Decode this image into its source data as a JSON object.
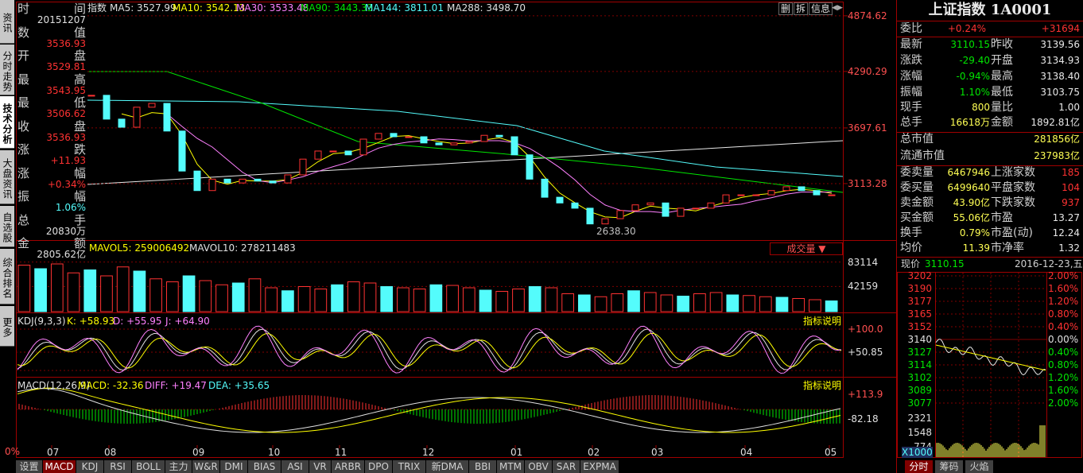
{
  "side_tabs": [
    "资讯",
    "分时走势",
    "技术分析",
    "大盘资讯",
    "自选股",
    "综合排名",
    "更多"
  ],
  "info_panel": {
    "rows": [
      {
        "label": "时间",
        "value": "20151207"
      },
      {
        "label": "数值",
        "value": "3536.93"
      },
      {
        "label": "开盘",
        "value": "3529.81"
      },
      {
        "label": "最高",
        "value": "3543.95"
      },
      {
        "label": "最低",
        "value": "3506.62"
      },
      {
        "label": "收盘",
        "value": "3536.93"
      },
      {
        "label": "涨跌",
        "value": "+11.93"
      },
      {
        "label": "涨幅",
        "value": "+0.34%"
      },
      {
        "label": "振幅",
        "value": "1.06%"
      },
      {
        "label": "总手",
        "value": "20830万"
      },
      {
        "label": "金额",
        "value": "2805.62亿"
      }
    ]
  },
  "main_chart": {
    "header": [
      "指数",
      "MA5: 3527.99",
      "MA10: 3542.13",
      "MA30: 3533.48",
      "MA90: 3443.33",
      "MA144: 3811.01",
      "MA288: 3498.70"
    ],
    "header_colors": [
      "#e0e0e0",
      "#e0e0e0",
      "#ffff00",
      "#ff80ff",
      "#00e600",
      "#54fcfc",
      "#e0e0e0"
    ],
    "buttons": [
      "删",
      "拆",
      "信息"
    ],
    "yticks": [
      4874.62,
      4290.29,
      3697.61,
      3113.28
    ],
    "ylim": [
      2537,
      5007
    ],
    "closes": [
      4040,
      3790,
      3705,
      3915,
      3955,
      3665,
      3245,
      3040,
      3160,
      3120,
      3160,
      3140,
      3120,
      3205,
      3370,
      3455,
      3455,
      3415,
      3580,
      3640,
      3605,
      3605,
      3540,
      3520,
      3540,
      3555,
      3620,
      3605,
      3415,
      3160,
      2970,
      2910,
      2855,
      2690,
      2745,
      2830,
      2890,
      2910,
      2770,
      2855,
      2855,
      2910,
      2995,
      2995,
      2995,
      3040,
      3080,
      3040,
      2995,
      2995
    ],
    "low_label": "2638.30"
  },
  "volume": {
    "header": [
      "MAVOL5: 259006492",
      "MAVOL10: 278211483"
    ],
    "selector": "成交量 ▼",
    "yticks": [
      83114,
      42159
    ],
    "ylim": [
      0,
      116000
    ],
    "values": [
      78000,
      72000,
      80000,
      65000,
      70000,
      60000,
      75000,
      68000,
      55000,
      50000,
      60000,
      52000,
      45000,
      48000,
      55000,
      40000,
      35000,
      42000,
      38000,
      45000,
      50000,
      48000,
      42000,
      40000,
      38000,
      45000,
      44000,
      40000,
      36000,
      34000,
      38000,
      42000,
      40000,
      30000,
      28000,
      25000,
      30000,
      35000,
      32000,
      28000,
      26000,
      30000,
      32000,
      28000,
      27000,
      25000,
      24000,
      22000,
      20000,
      18000
    ]
  },
  "kdj": {
    "header": [
      "KDJ(9,3,3)",
      "K: +58.93",
      "D: +55.95",
      "J: +64.90"
    ],
    "button": "指标说明",
    "ticks": [
      "+100.0",
      "+50.85"
    ]
  },
  "macd": {
    "header": [
      "MACD(12,26,9)",
      "MACD: -32.36",
      "DIFF: +19.47",
      "DEA: +35.65"
    ],
    "button": "指标说明",
    "ticks": [
      "+113.9",
      "-82.18"
    ]
  },
  "corner": "0%",
  "x_labels": [
    "07",
    "08",
    "09",
    "10",
    "11",
    "12",
    "01",
    "02",
    "03",
    "04",
    "05"
  ],
  "bottom_tabs": [
    "设置",
    "MACD",
    "KDJ",
    "RSI",
    "BOLL",
    "主力",
    "W&R",
    "DMI",
    "BIAS",
    "ASI",
    "VR",
    "ARBR",
    "DPO",
    "TRIX",
    "新DMA",
    "BBI",
    "MTM",
    "OBV",
    "SAR",
    "EXPMA"
  ],
  "quote_panel": {
    "title": "上证指数 1A0001",
    "ratio": [
      "委比",
      "+0.24%",
      "+31694"
    ],
    "rows": [
      [
        "最新",
        "3110.15",
        "昨收",
        "3139.56"
      ],
      [
        "涨跌",
        "-29.40",
        "开盘",
        "3134.93"
      ],
      [
        "涨幅",
        "-0.94%",
        "最高",
        "3138.40"
      ],
      [
        "振幅",
        "1.10%",
        "最低",
        "3103.75"
      ],
      [
        "现手",
        "800",
        "量比",
        "1.00"
      ],
      [
        "总手",
        "16618万",
        "金额",
        "1892.81亿"
      ],
      [
        "总市值",
        "281856亿"
      ],
      [
        "流通市值",
        "237983亿"
      ],
      [
        "委卖量",
        "6467946",
        "上涨家数",
        "185"
      ],
      [
        "委买量",
        "6499640",
        "平盘家数",
        "104"
      ],
      [
        "卖金额",
        "43.90亿",
        "下跌家数",
        "937"
      ],
      [
        "买金额",
        "55.06亿",
        "市盈",
        "13.27"
      ],
      [
        "换手",
        "0.79%",
        "市盈(动)",
        "12.24"
      ],
      [
        "均价",
        "11.39",
        "市净率",
        "1.32"
      ]
    ]
  },
  "minute_chart": {
    "price_label": "现价",
    "price": "3110.15",
    "date": "2016-12-23,五",
    "left_ticks": [
      "3202",
      "3190",
      "3177",
      "3165",
      "3152",
      "3140",
      "3127",
      "3114",
      "3102",
      "3089",
      "3077"
    ],
    "right_ticks": [
      "2.00%",
      "1.60%",
      "1.20%",
      "0.80%",
      "0.40%",
      "0.00%",
      "0.40%",
      "0.80%",
      "1.20%",
      "1.60%",
      "2.00%"
    ],
    "volume_ticks": [
      "2321",
      "1548",
      "774"
    ],
    "unit": "X1000"
  },
  "panel_tabs": [
    "分时",
    "筹码",
    "火焰"
  ]
}
